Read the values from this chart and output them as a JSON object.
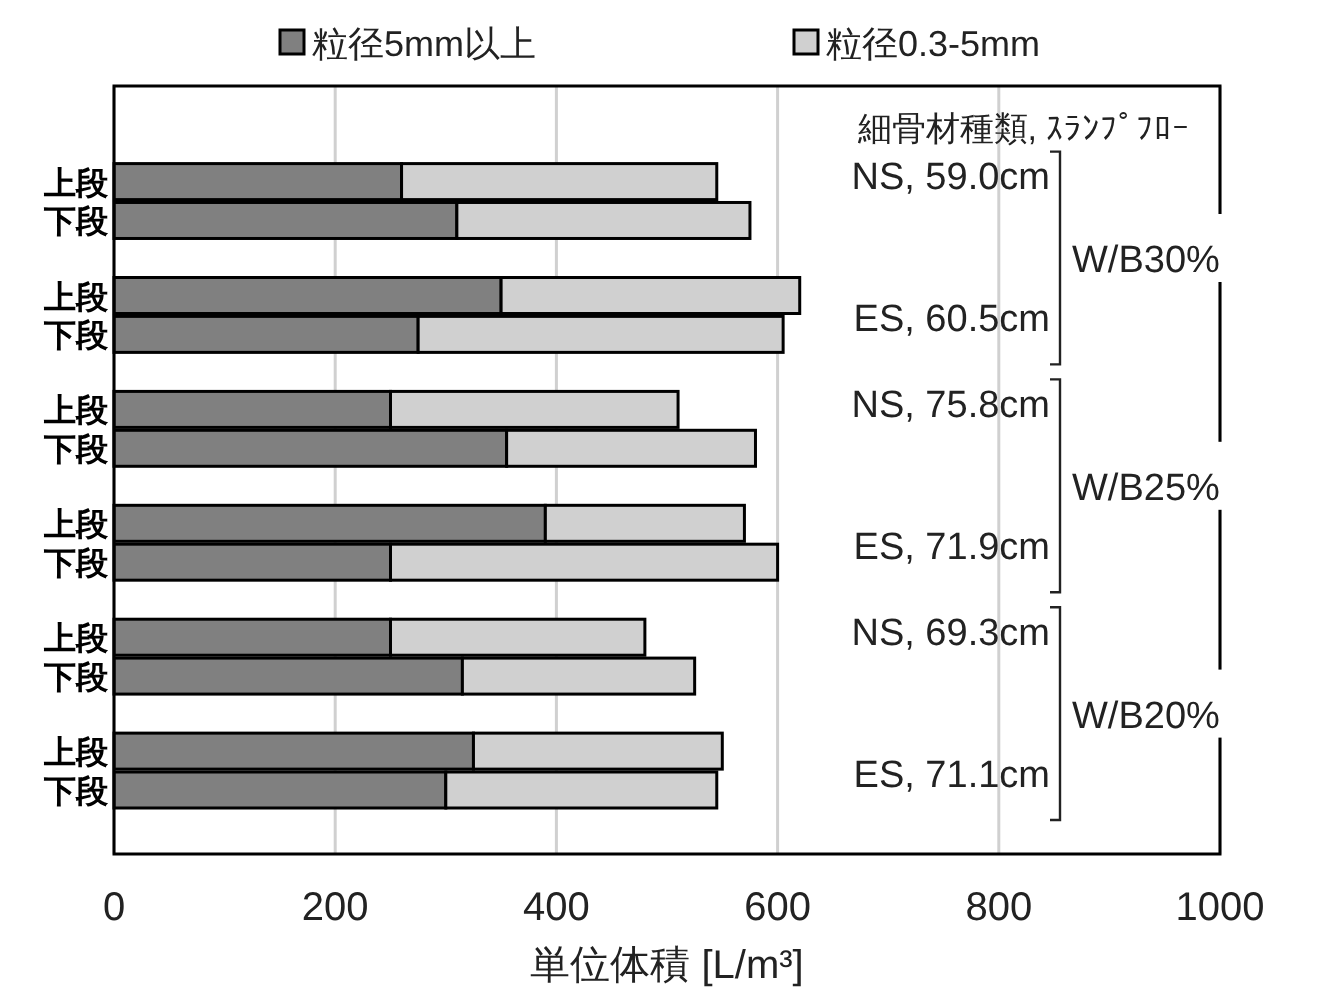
{
  "chart_data": {
    "type": "bar",
    "orientation": "horizontal",
    "stacked": true,
    "xlabel": "単位体積 [L/m³]",
    "categories": [
      "上段",
      "下段",
      "上段",
      "下段",
      "上段",
      "下段",
      "上段",
      "下段",
      "上段",
      "下段",
      "上段",
      "下段"
    ],
    "series": [
      {
        "name": "粒径5mm以上",
        "color": "#808080",
        "values": [
          260,
          310,
          350,
          275,
          250,
          355,
          390,
          250,
          250,
          315,
          325,
          300
        ]
      },
      {
        "name": "粒径0.3-5mm",
        "color": "#d0d0d0",
        "values": [
          285,
          265,
          270,
          330,
          260,
          225,
          180,
          350,
          230,
          210,
          225,
          245
        ]
      }
    ],
    "xlim": [
      0,
      1000
    ],
    "xticks": [
      0,
      200,
      400,
      600,
      800,
      1000
    ],
    "grid": "x",
    "legend": "top",
    "annotations": [
      "細骨材種類, ｽﾗﾝﾌﾟﾌﾛｰ",
      "NS, 59.0cm",
      "ES, 60.5cm",
      "NS, 75.8cm",
      "ES, 71.9cm",
      "NS, 69.3cm",
      "ES, 71.1cm",
      "W/B30%",
      "W/B25%",
      "W/B20%"
    ]
  }
}
